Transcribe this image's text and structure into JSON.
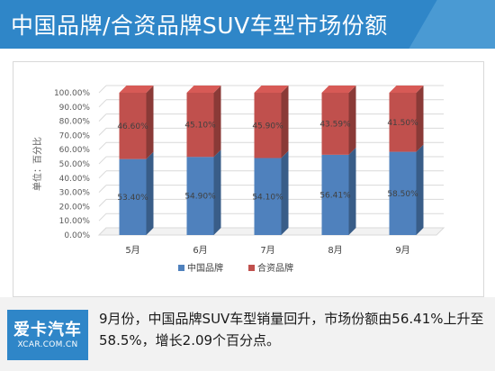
{
  "header": {
    "title": "中国品牌/合资品牌SUV车型市场份额"
  },
  "chart_data": {
    "type": "bar",
    "stacked": true,
    "percent": true,
    "categories": [
      "5月",
      "6月",
      "7月",
      "8月",
      "9月"
    ],
    "series": [
      {
        "name": "中国品牌",
        "color": "#4f81bd",
        "values": [
          53.4,
          54.9,
          54.1,
          56.41,
          58.5
        ],
        "labels": [
          "53.40%",
          "54.90%",
          "54.10%",
          "56.41%",
          "58.50%"
        ]
      },
      {
        "name": "合资品牌",
        "color": "#c0504d",
        "values": [
          46.6,
          45.1,
          45.9,
          43.59,
          41.5
        ],
        "labels": [
          "46.60%",
          "45.10%",
          "45.90%",
          "43.59%",
          "41.50%"
        ]
      }
    ],
    "ylabel": "单位：百分比",
    "ylim": [
      0,
      100
    ],
    "yticks": [
      "0.00%",
      "10.00%",
      "20.00%",
      "30.00%",
      "40.00%",
      "50.00%",
      "60.00%",
      "70.00%",
      "80.00%",
      "90.00%",
      "100.00%"
    ],
    "grid": true,
    "legend": "bottom"
  },
  "footer": {
    "logo_text": "爱卡汽车",
    "logo_url_text": "XCAR.COM.CN",
    "caption": "9月份，中国品牌SUV车型销量回升，市场份额由56.41%上升至58.5%，增长2.09个百分点。"
  }
}
